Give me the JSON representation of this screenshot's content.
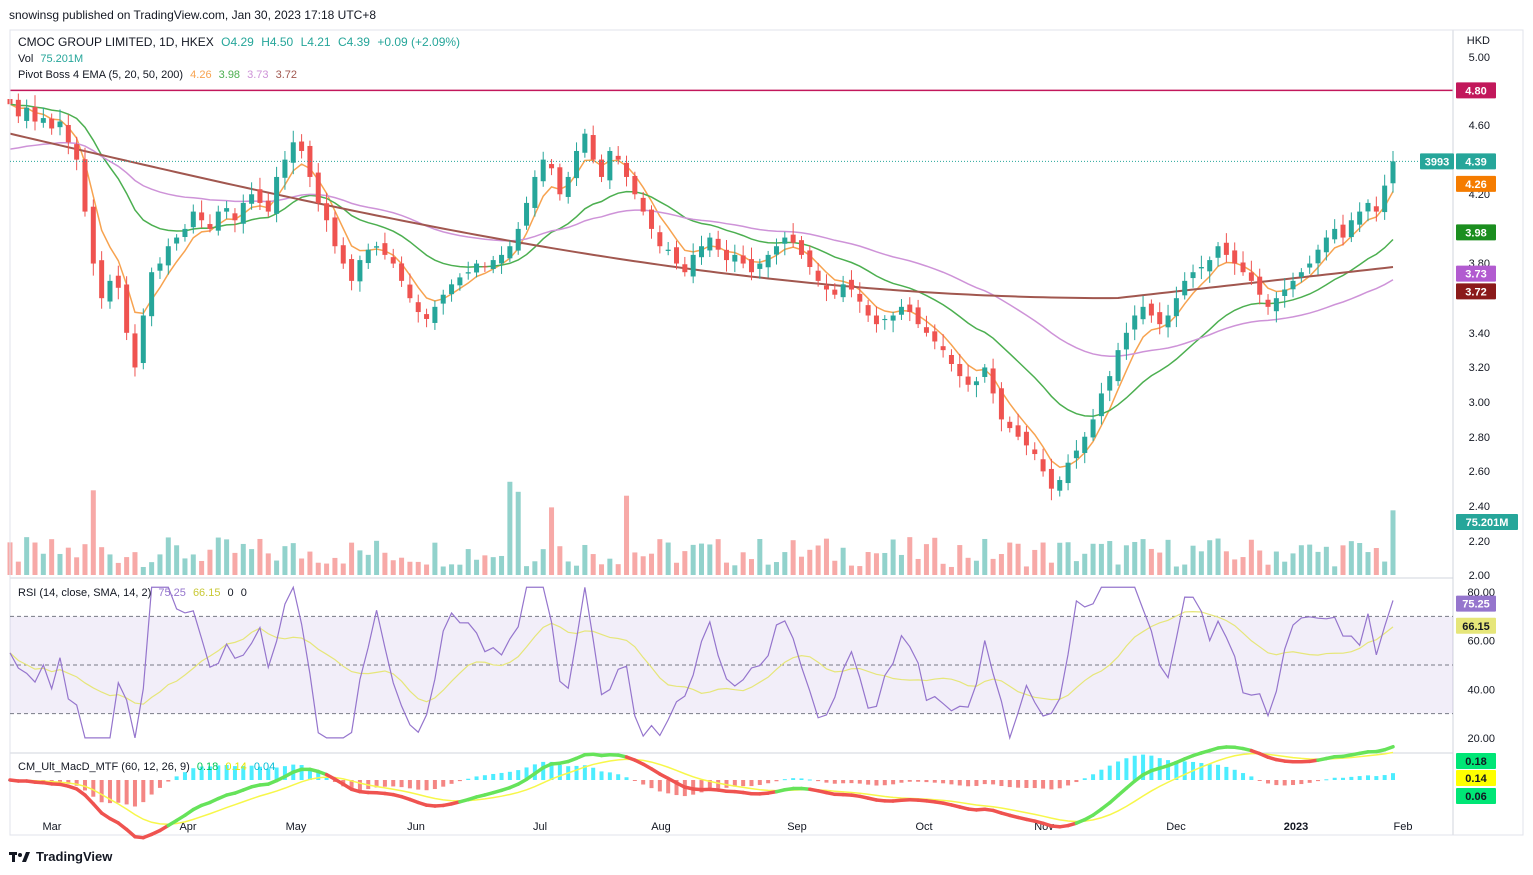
{
  "header": {
    "published": "snowinsg published on TradingView.com, Jan 30, 2023 17:18 UTC+8"
  },
  "symbol": {
    "name": "CMOC GROUP LIMITED, 1D, HKEX",
    "open": "O4.29",
    "high": "H4.50",
    "low": "L4.21",
    "close": "C4.39",
    "change": "+0.09 (+2.09%)",
    "currency": "HKD"
  },
  "vol_legend": {
    "label": "Vol",
    "value": "75.201M"
  },
  "ema_legend": {
    "label": "Pivot Boss 4 EMA (5, 20, 50, 200)",
    "v1": "4.26",
    "v2": "3.98",
    "v3": "3.73",
    "v4": "3.72"
  },
  "rsi_legend": {
    "label": "RSI (14, close, SMA, 14, 2)",
    "v1": "75.25",
    "v2": "66.15",
    "v3": "0",
    "v4": "0"
  },
  "macd_legend": {
    "label": "CM_Ult_MacD_MTF (60, 12, 26, 9)",
    "v1": "0.18",
    "v2": "0.14",
    "v3": "0.04"
  },
  "footer": {
    "brand": "TradingView"
  },
  "colors": {
    "up": "#26a69a",
    "down": "#ef5350",
    "ema5": "#f7a350",
    "ema20": "#4caf50",
    "ema50": "#ce93d8",
    "ema200": "#a1574f",
    "rsi": "#9575cd",
    "rsi_ma": "#e6e67a",
    "hline": "#c2185b"
  },
  "chart_data": {
    "type": "candlestick",
    "price_axis": {
      "ticks": [
        "5.00",
        "4.60",
        "4.20",
        "3.80",
        "3.40",
        "3.20",
        "3.00",
        "2.80",
        "2.60",
        "2.40",
        "2.20",
        "2.00"
      ],
      "range": [
        2.0,
        5.0
      ]
    },
    "x_axis": {
      "ticks": [
        "Mar",
        "Apr",
        "May",
        "Jun",
        "Jul",
        "Aug",
        "Sep",
        "Oct",
        "Nov",
        "Dec",
        "2023",
        "Feb"
      ]
    },
    "hline": {
      "value": 4.8,
      "label": "4.80"
    },
    "labels": {
      "last": "4.39",
      "countdown": "3993",
      "ema5": "4.26",
      "ema20": "3.98",
      "ema50": "3.73",
      "ema200": "3.72",
      "volume": "75.201M"
    },
    "close": [
      4.72,
      4.65,
      4.7,
      4.62,
      4.64,
      4.58,
      4.62,
      4.5,
      4.4,
      4.1,
      3.8,
      3.6,
      3.7,
      3.66,
      3.4,
      3.2,
      3.5,
      3.75,
      3.8,
      3.9,
      3.95,
      4.0,
      4.1,
      4.05,
      4.0,
      4.1,
      4.12,
      4.05,
      4.15,
      4.2,
      4.15,
      4.1,
      4.3,
      4.4,
      4.5,
      4.45,
      4.3,
      4.15,
      4.05,
      3.9,
      3.8,
      3.7,
      3.82,
      3.88,
      3.9,
      3.85,
      3.8,
      3.7,
      3.6,
      3.52,
      3.48,
      3.55,
      3.62,
      3.68,
      3.72,
      3.75,
      3.8,
      3.78,
      3.82,
      3.85,
      3.9,
      4.0,
      4.15,
      4.3,
      4.4,
      4.35,
      4.2,
      4.3,
      4.45,
      4.55,
      4.4,
      4.3,
      4.45,
      4.4,
      4.3,
      4.2,
      4.1,
      4.0,
      3.9,
      3.88,
      3.8,
      3.75,
      3.85,
      3.9,
      3.95,
      3.88,
      3.82,
      3.85,
      3.8,
      3.75,
      3.8,
      3.85,
      3.9,
      3.95,
      3.92,
      3.85,
      3.78,
      3.7,
      3.65,
      3.62,
      3.68,
      3.65,
      3.58,
      3.5,
      3.45,
      3.48,
      3.5,
      3.55,
      3.52,
      3.45,
      3.4,
      3.35,
      3.3,
      3.22,
      3.15,
      3.1,
      3.12,
      3.2,
      3.05,
      2.9,
      2.85,
      2.8,
      2.75,
      2.7,
      2.6,
      2.5,
      2.55,
      2.65,
      2.72,
      2.8,
      2.9,
      3.05,
      3.15,
      3.3,
      3.4,
      3.5,
      3.55,
      3.5,
      3.45,
      3.5,
      3.6,
      3.7,
      3.75,
      3.78,
      3.82,
      3.9,
      3.85,
      3.8,
      3.75,
      3.7,
      3.62,
      3.55,
      3.6,
      3.65,
      3.7,
      3.75,
      3.8,
      3.88,
      3.95,
      4.0,
      3.95,
      4.05,
      4.1,
      4.15,
      4.1,
      4.25,
      4.39
    ]
  }
}
